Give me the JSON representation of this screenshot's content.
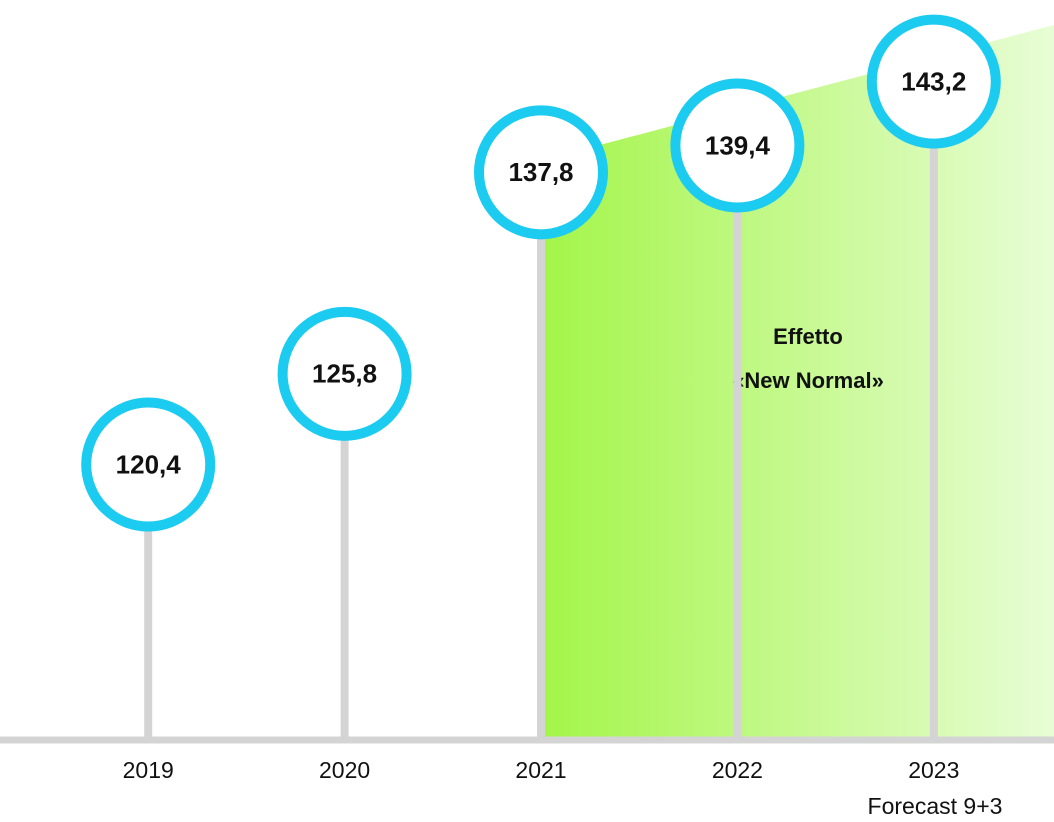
{
  "chart_data": {
    "type": "lollipop",
    "categories": [
      "2019",
      "2020",
      "2021",
      "2022",
      "2023"
    ],
    "values": [
      120.4,
      125.8,
      137.8,
      139.4,
      143.2
    ],
    "value_labels": [
      "120,4",
      "125,8",
      "137,8",
      "139,4",
      "143,2"
    ],
    "ylim": [
      104,
      148
    ],
    "color": "#1ccbf0",
    "annotation": [
      "Effetto",
      "«New Normal»"
    ],
    "forecast_note": "Forecast 9+3"
  }
}
